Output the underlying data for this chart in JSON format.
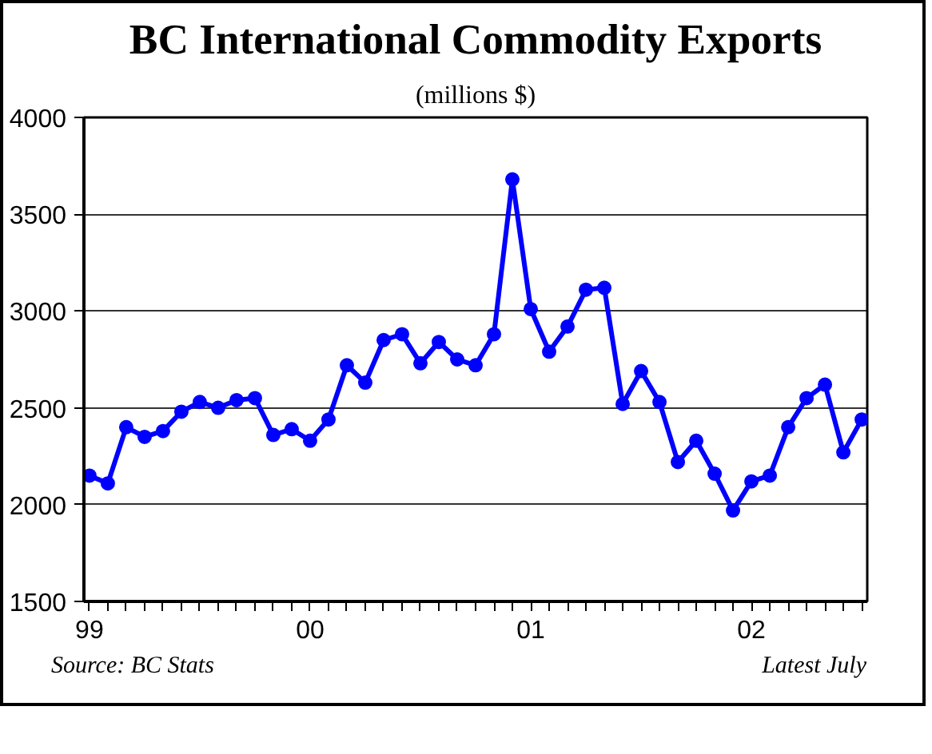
{
  "chart_data": {
    "type": "line",
    "title": "BC International Commodity Exports",
    "subtitle": "(millions $)",
    "categories": [
      "99",
      null,
      null,
      null,
      null,
      null,
      null,
      null,
      null,
      null,
      null,
      null,
      "00",
      null,
      null,
      null,
      null,
      null,
      null,
      null,
      null,
      null,
      null,
      null,
      "01",
      null,
      null,
      null,
      null,
      null,
      null,
      null,
      null,
      null,
      null,
      null,
      "02",
      null,
      null,
      null,
      null,
      null,
      null
    ],
    "series": [
      {
        "color": "#0000ff",
        "values": [
          2150,
          2110,
          2400,
          2350,
          2380,
          2480,
          2530,
          2500,
          2540,
          2550,
          2360,
          2390,
          2330,
          2440,
          2720,
          2630,
          2850,
          2880,
          2730,
          2840,
          2750,
          2720,
          2880,
          3680,
          3010,
          2790,
          2920,
          3110,
          3120,
          2520,
          2690,
          2530,
          2220,
          2330,
          2160,
          1970,
          2120,
          2150,
          2400,
          2550,
          2620,
          2270,
          2440
        ]
      }
    ],
    "ylim": [
      1500,
      4000
    ],
    "yticks": [
      1500,
      2000,
      2500,
      3000,
      3500,
      4000
    ],
    "grid": "y",
    "marker": "circle",
    "line_style": "solid",
    "annotations": [
      "Source:  BC Stats",
      "Latest July"
    ]
  }
}
